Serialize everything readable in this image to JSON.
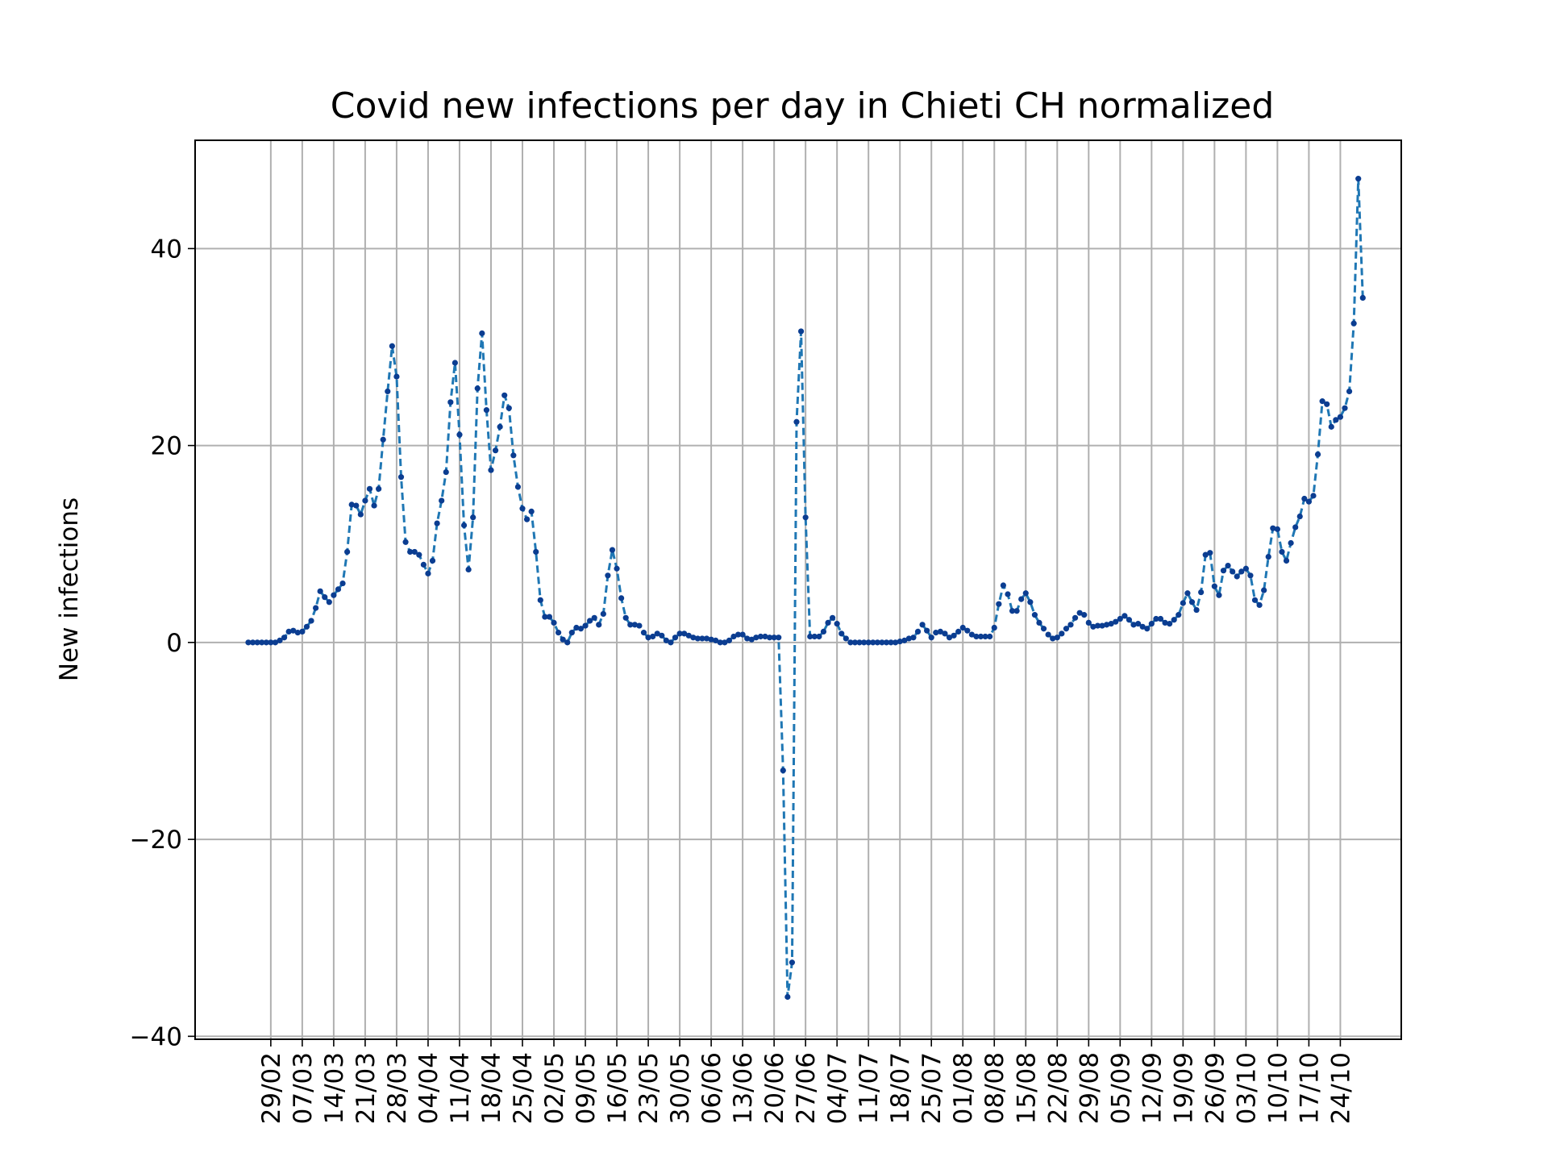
{
  "chart_data": {
    "type": "line",
    "title": "Covid new infections per day in Chieti CH normalized",
    "xlabel": "",
    "ylabel": "New infections",
    "ylim": [
      -40.3,
      51
    ],
    "yticks": [
      -40,
      -20,
      0,
      20,
      40
    ],
    "ytick_labels": [
      "−40",
      "−20",
      "0",
      "20",
      "40"
    ],
    "x_start": "2020-02-24",
    "x_end": "2020-10-25",
    "x_tick_dates": [
      "2020-02-29",
      "2020-03-07",
      "2020-03-14",
      "2020-03-21",
      "2020-03-28",
      "2020-04-04",
      "2020-04-11",
      "2020-04-18",
      "2020-04-25",
      "2020-05-02",
      "2020-05-09",
      "2020-05-16",
      "2020-05-23",
      "2020-05-30",
      "2020-06-06",
      "2020-06-13",
      "2020-06-20",
      "2020-06-27",
      "2020-07-04",
      "2020-07-11",
      "2020-07-18",
      "2020-07-25",
      "2020-08-01",
      "2020-08-08",
      "2020-08-15",
      "2020-08-22",
      "2020-08-29",
      "2020-09-05",
      "2020-09-12",
      "2020-09-19",
      "2020-09-26",
      "2020-10-03",
      "2020-10-10",
      "2020-10-17",
      "2020-10-24"
    ],
    "x_tick_labels": [
      "29/02",
      "07/03",
      "14/03",
      "21/03",
      "28/03",
      "04/04",
      "11/04",
      "18/04",
      "25/04",
      "02/05",
      "09/05",
      "16/05",
      "23/05",
      "30/05",
      "06/06",
      "13/06",
      "20/06",
      "27/06",
      "04/07",
      "11/07",
      "18/07",
      "25/07",
      "01/08",
      "08/08",
      "15/08",
      "22/08",
      "29/08",
      "05/09",
      "12/09",
      "19/09",
      "26/09",
      "03/10",
      "10/10",
      "17/10",
      "24/10"
    ],
    "grid": true,
    "series": [
      {
        "color": "#1f77b4",
        "marker_color": "#0b3d91",
        "line_style": "dashed",
        "values": [
          0,
          0,
          0,
          0,
          0,
          0,
          0,
          0.2,
          0.5,
          1.1,
          1.2,
          1,
          1.1,
          1.6,
          2.2,
          3.5,
          5.2,
          4.6,
          4.1,
          4.8,
          5.4,
          6,
          9.2,
          14,
          13.9,
          13,
          14.4,
          15.6,
          13.9,
          15.6,
          20.6,
          25.5,
          30.1,
          27,
          16.8,
          10.2,
          9.2,
          9.2,
          8.9,
          7.9,
          7,
          8.3,
          12.1,
          14.4,
          17.3,
          24.4,
          28.4,
          21.1,
          11.9,
          7.4,
          12.7,
          25.8,
          31.4,
          23.6,
          17.5,
          19.5,
          21.9,
          25.1,
          23.8,
          19,
          15.8,
          13.6,
          12.5,
          13.3,
          9.2,
          4.3,
          2.6,
          2.6,
          2,
          1,
          0.3,
          0,
          1,
          1.5,
          1.4,
          1.7,
          2.2,
          2.5,
          1.8,
          2.9,
          6.8,
          9.4,
          7.5,
          4.5,
          2.5,
          1.8,
          1.8,
          1.7,
          1,
          0.5,
          0.6,
          0.9,
          0.7,
          0.2,
          0,
          0.5,
          0.9,
          0.9,
          0.7,
          0.5,
          0.4,
          0.4,
          0.4,
          0.3,
          0.2,
          0,
          0,
          0.2,
          0.6,
          0.8,
          0.8,
          0.4,
          0.3,
          0.5,
          0.6,
          0.6,
          0.5,
          0.5,
          0.5,
          -13,
          -36,
          -32.5,
          22.4,
          31.6,
          12.7,
          0.6,
          0.6,
          0.6,
          1.1,
          2,
          2.5,
          1.9,
          0.9,
          0.4,
          0,
          0,
          0,
          0,
          0,
          0,
          0,
          0,
          0,
          0,
          0,
          0.1,
          0.2,
          0.4,
          0.5,
          1.1,
          1.8,
          1.2,
          0.5,
          1,
          1.1,
          0.9,
          0.5,
          0.7,
          1.1,
          1.5,
          1.2,
          0.8,
          0.6,
          0.6,
          0.6,
          0.6,
          1.5,
          3.9,
          5.8,
          4.9,
          3.2,
          3.2,
          4.4,
          5,
          4.1,
          2.8,
          2,
          1.4,
          0.8,
          0.4,
          0.5,
          0.9,
          1.4,
          1.8,
          2.5,
          3,
          2.8,
          2,
          1.6,
          1.7,
          1.7,
          1.8,
          1.9,
          2.1,
          2.4,
          2.7,
          2.3,
          1.8,
          1.9,
          1.6,
          1.4,
          1.9,
          2.4,
          2.4,
          2,
          1.9,
          2.3,
          2.8,
          4,
          5,
          4.1,
          3.3,
          5.1,
          8.9,
          9.1,
          5.7,
          4.8,
          7.3,
          7.8,
          7.2,
          6.7,
          7.2,
          7.5,
          6.8,
          4.3,
          3.8,
          5.3,
          8.7,
          11.6,
          11.5,
          9.2,
          8.3,
          10.1,
          11.7,
          12.8,
          14.6,
          14.3,
          14.9,
          19.1,
          24.5,
          24.2,
          21.9,
          22.6,
          22.9,
          23.8,
          25.5,
          32.4,
          47.1,
          35
        ]
      }
    ]
  }
}
